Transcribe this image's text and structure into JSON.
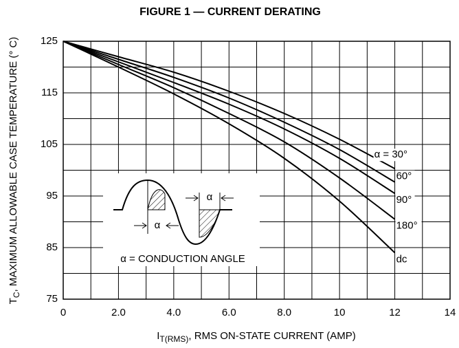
{
  "chart_data": {
    "type": "line",
    "title": "FIGURE 1 — CURRENT DERATING",
    "x_label": {
      "symbol": "I",
      "subscript": "T(RMS)",
      "text": ", RMS ON-STATE CURRENT (AMP)"
    },
    "y_label": {
      "symbol": "T",
      "subscript": "C",
      "text": ", MAXIMUM ALLOWABLE CASE TEMPERATURE (° C)"
    },
    "x": [
      0,
      2,
      4,
      6,
      8,
      10,
      12
    ],
    "series": [
      {
        "name": "α = 30°",
        "color": "#000000",
        "values": [
          125,
          122,
          119,
          115.3,
          111,
          106,
          100.3
        ]
      },
      {
        "name": "60°",
        "color": "#000000",
        "values": [
          125,
          121.5,
          118,
          114,
          109.3,
          104,
          97.7
        ]
      },
      {
        "name": "90°",
        "color": "#000000",
        "values": [
          125,
          121,
          117,
          112.8,
          108,
          102.3,
          95.5
        ]
      },
      {
        "name": "180°",
        "color": "#000000",
        "values": [
          125,
          120.5,
          116,
          111,
          105.5,
          98.5,
          90.5
        ]
      },
      {
        "name": "dc",
        "color": "#000000",
        "values": [
          125,
          120,
          114.8,
          109,
          102.3,
          94,
          84
        ]
      }
    ],
    "xlim": [
      0,
      14
    ],
    "ylim": [
      75,
      125
    ],
    "xticks": [
      0,
      {
        "value": 2,
        "label": "2.0"
      },
      {
        "value": 4,
        "label": "4.0"
      },
      {
        "value": 6,
        "label": "6.0"
      },
      {
        "value": 8,
        "label": "8.0"
      },
      {
        "value": 10,
        "label": "10"
      },
      12,
      14
    ],
    "yticks": [
      75,
      85,
      95,
      105,
      115,
      125
    ],
    "x_minor_grid": [
      1,
      3,
      5,
      7,
      9,
      11,
      13
    ],
    "y_minor_grid": [
      80,
      90,
      100,
      110,
      120
    ],
    "grid": true,
    "annotations": {
      "inset_caption": "α = CONDUCTION ANGLE",
      "alpha_lower": "α",
      "alpha_upper": "α"
    }
  }
}
